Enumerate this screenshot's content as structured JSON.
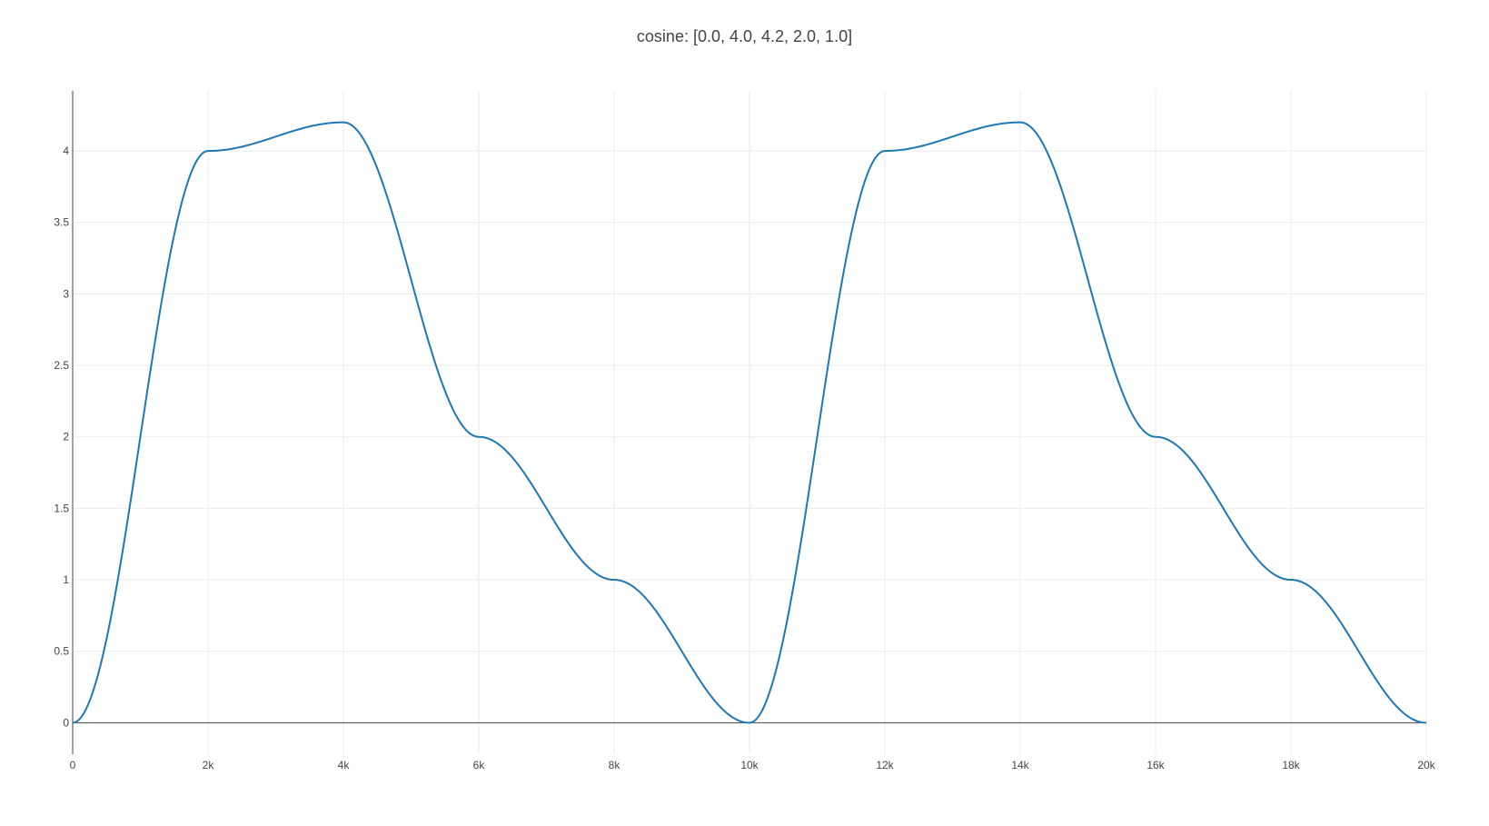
{
  "chart_data": {
    "type": "line",
    "title": "cosine: [0.0, 4.0, 4.2, 2.0, 1.0]",
    "xlabel": "",
    "ylabel": "",
    "xlim": [
      0,
      20000
    ],
    "ylim": [
      -0.22,
      4.42
    ],
    "x_ticks": [
      0,
      2000,
      4000,
      6000,
      8000,
      10000,
      12000,
      14000,
      16000,
      18000,
      20000
    ],
    "x_tick_labels": [
      "0",
      "2k",
      "4k",
      "6k",
      "8k",
      "10k",
      "12k",
      "14k",
      "16k",
      "18k",
      "20k"
    ],
    "y_ticks": [
      0,
      0.5,
      1,
      1.5,
      2,
      2.5,
      3,
      3.5,
      4
    ],
    "y_tick_labels": [
      "0",
      "0.5",
      "1",
      "1.5",
      "2",
      "2.5",
      "3",
      "3.5",
      "4"
    ],
    "grid": true,
    "series": [
      {
        "color": "#1f77b4",
        "x": [
          0,
          2000,
          4000,
          6000,
          8000,
          10000,
          12000,
          14000,
          16000,
          18000,
          20000
        ],
        "y": [
          0.0,
          4.0,
          4.2,
          2.0,
          1.0,
          0.0,
          4.0,
          4.2,
          2.0,
          1.0,
          0.0
        ],
        "interpolation": "cosine"
      }
    ]
  }
}
